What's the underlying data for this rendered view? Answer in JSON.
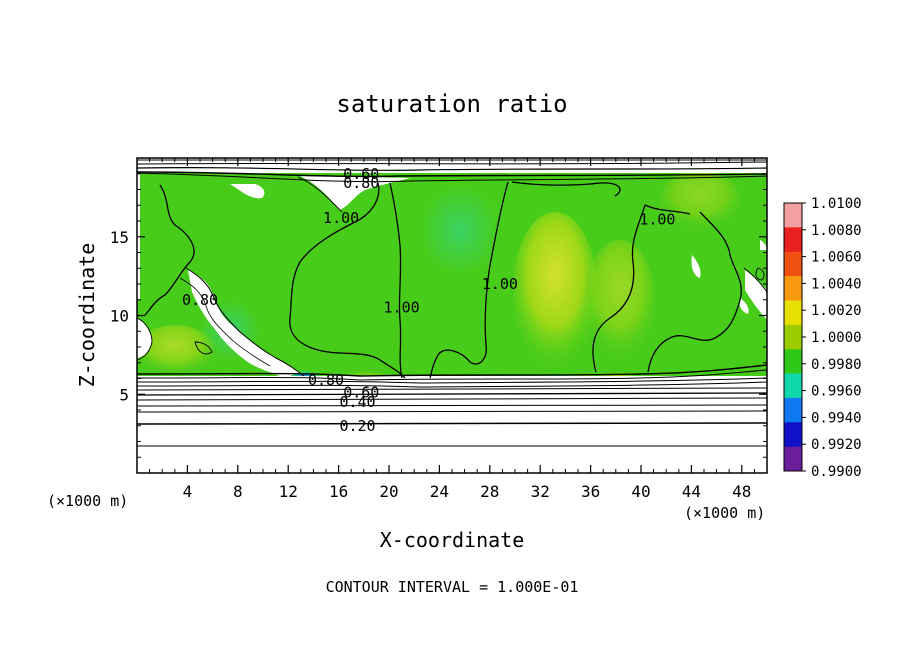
{
  "chart_data": {
    "type": "heatmap",
    "title": "saturation ratio",
    "xlabel": "X-coordinate",
    "ylabel": "Z-coordinate",
    "x_unit_left": "(×1000 m)",
    "x_unit_right": "(×1000 m)",
    "footer": "CONTOUR INTERVAL = 1.000E-01",
    "xlim": [
      0,
      50
    ],
    "ylim": [
      0,
      20
    ],
    "x_ticks": [
      4,
      8,
      12,
      16,
      20,
      24,
      28,
      32,
      36,
      40,
      44,
      48
    ],
    "y_ticks": [
      5,
      10,
      15
    ],
    "colorbar": {
      "labels": [
        "1.0100",
        "1.0080",
        "1.0060",
        "1.0040",
        "1.0020",
        "1.0000",
        "0.9980",
        "0.9960",
        "0.9940",
        "0.9920",
        "0.9900"
      ],
      "colors": [
        "#f4a0a0",
        "#e8201e",
        "#f05010",
        "#f89a10",
        "#e8e000",
        "#9ccc00",
        "#30c818",
        "#10d8a8",
        "#1078f0",
        "#1010c8",
        "#6a1e9a"
      ]
    },
    "contour_labels": [
      {
        "text": "0.60",
        "x": 17.8,
        "z": 19.0
      },
      {
        "text": "0.80",
        "x": 17.8,
        "z": 18.4
      },
      {
        "text": "1.00",
        "x": 16.2,
        "z": 16.2
      },
      {
        "text": "1.00",
        "x": 21.0,
        "z": 10.5
      },
      {
        "text": "1.00",
        "x": 28.8,
        "z": 12.0
      },
      {
        "text": "1.00",
        "x": 41.3,
        "z": 16.1
      },
      {
        "text": "0.80",
        "x": 5.0,
        "z": 11.0
      },
      {
        "text": "0.80",
        "x": 15.0,
        "z": 5.9
      },
      {
        "text": "0.60",
        "x": 17.8,
        "z": 5.1
      },
      {
        "text": "0.40",
        "x": 17.5,
        "z": 4.5
      },
      {
        "text": "0.20",
        "x": 17.5,
        "z": 3.0
      }
    ]
  }
}
